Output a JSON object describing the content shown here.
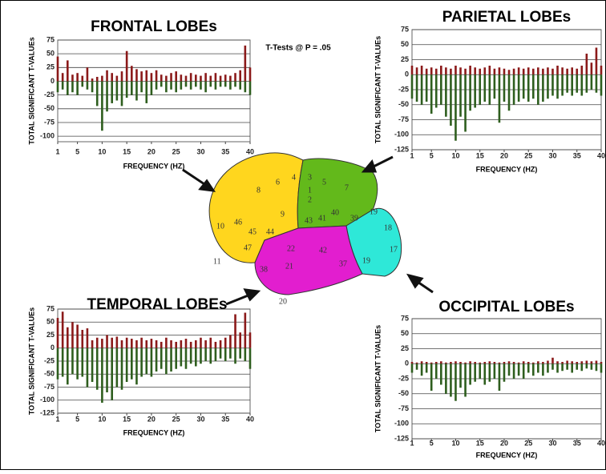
{
  "annotation": "T-Tests @ P = .05",
  "brain_areas": [
    "8",
    "6",
    "4",
    "3",
    "1",
    "2",
    "5",
    "7",
    "9",
    "46",
    "10",
    "45",
    "44",
    "43",
    "41",
    "40",
    "39",
    "19",
    "18",
    "17",
    "47",
    "11",
    "22",
    "42",
    "21",
    "38",
    "37",
    "19",
    "20"
  ],
  "chart_data": [
    {
      "type": "bar",
      "title": "FRONTAL LOBEs",
      "x_label": "FREQUENCY (HZ)",
      "y_label": "TOTAL SIGNIFICANT T-VALUEs",
      "x": [
        1,
        2,
        3,
        4,
        5,
        6,
        7,
        8,
        9,
        10,
        11,
        12,
        13,
        14,
        15,
        16,
        17,
        18,
        19,
        20,
        21,
        22,
        23,
        24,
        25,
        26,
        27,
        28,
        29,
        30,
        31,
        32,
        33,
        34,
        35,
        36,
        37,
        38,
        39,
        40
      ],
      "xlim": [
        1,
        40
      ],
      "xticks": [
        1,
        5,
        10,
        15,
        20,
        25,
        30,
        35,
        40
      ],
      "ylim": [
        -110,
        75
      ],
      "yticks": [
        75,
        50,
        25,
        0,
        -25,
        -50,
        -75,
        -100
      ],
      "grid": true,
      "series": [
        {
          "color": "#8b1a1a",
          "values": [
            45,
            15,
            38,
            12,
            15,
            10,
            25,
            5,
            8,
            10,
            20,
            15,
            10,
            18,
            55,
            28,
            22,
            18,
            20,
            15,
            20,
            12,
            10,
            15,
            18,
            12,
            10,
            15,
            12,
            10,
            15,
            10,
            15,
            10,
            12,
            10,
            15,
            20,
            65,
            25
          ]
        },
        {
          "color": "#2e5e1e",
          "values": [
            -20,
            -15,
            -25,
            -20,
            -25,
            -10,
            -15,
            -20,
            -45,
            -90,
            -55,
            -40,
            -35,
            -45,
            -30,
            -25,
            -35,
            -20,
            -40,
            -25,
            -15,
            -10,
            -20,
            -15,
            -20,
            -15,
            -10,
            -15,
            -10,
            -15,
            -20,
            -10,
            -15,
            -10,
            -10,
            -15,
            -10,
            -15,
            -20,
            -25
          ]
        }
      ]
    },
    {
      "type": "bar",
      "title": "PARIETAL LOBEs",
      "x_label": "FREQUENCY (HZ)",
      "y_label": "TOTAL SIGNIFICANT T-VALUEs",
      "x": [
        1,
        2,
        3,
        4,
        5,
        6,
        7,
        8,
        9,
        10,
        11,
        12,
        13,
        14,
        15,
        16,
        17,
        18,
        19,
        20,
        21,
        22,
        23,
        24,
        25,
        26,
        27,
        28,
        29,
        30,
        31,
        32,
        33,
        34,
        35,
        36,
        37,
        38,
        39,
        40
      ],
      "xlim": [
        1,
        40
      ],
      "xticks": [
        1,
        5,
        10,
        15,
        20,
        25,
        30,
        35,
        40
      ],
      "ylim": [
        -125,
        75
      ],
      "yticks": [
        75,
        50,
        25,
        0,
        -25,
        -50,
        -75,
        -100,
        -125
      ],
      "grid": true,
      "series": [
        {
          "color": "#8b1a1a",
          "values": [
            15,
            12,
            15,
            10,
            12,
            10,
            15,
            12,
            10,
            15,
            12,
            10,
            15,
            12,
            10,
            12,
            15,
            10,
            12,
            10,
            8,
            10,
            12,
            10,
            12,
            10,
            12,
            10,
            12,
            10,
            15,
            12,
            10,
            12,
            10,
            15,
            35,
            20,
            45,
            15
          ]
        },
        {
          "color": "#2e5e1e",
          "values": [
            -40,
            -45,
            -50,
            -45,
            -65,
            -55,
            -50,
            -70,
            -85,
            -110,
            -70,
            -95,
            -60,
            -55,
            -50,
            -45,
            -50,
            -40,
            -80,
            -45,
            -60,
            -50,
            -45,
            -40,
            -45,
            -40,
            -50,
            -45,
            -40,
            -35,
            -40,
            -35,
            -30,
            -35,
            -30,
            -35,
            -30,
            -25,
            -30,
            -35
          ]
        }
      ]
    },
    {
      "type": "bar",
      "title": "TEMPORAL LOBEs",
      "x_label": "FREQUENCY (HZ)",
      "y_label": "TOTAL SIGNIFICANT T-VALUEs",
      "x": [
        1,
        2,
        3,
        4,
        5,
        6,
        7,
        8,
        9,
        10,
        11,
        12,
        13,
        14,
        15,
        16,
        17,
        18,
        19,
        20,
        21,
        22,
        23,
        24,
        25,
        26,
        27,
        28,
        29,
        30,
        31,
        32,
        33,
        34,
        35,
        36,
        37,
        38,
        39,
        40
      ],
      "xlim": [
        1,
        40
      ],
      "xticks": [
        1,
        5,
        10,
        15,
        20,
        25,
        30,
        35,
        40
      ],
      "ylim": [
        -125,
        75
      ],
      "yticks": [
        75,
        50,
        25,
        0,
        -25,
        -50,
        -75,
        -100,
        -125
      ],
      "grid": true,
      "series": [
        {
          "color": "#8b1a1a",
          "values": [
            58,
            70,
            40,
            50,
            45,
            35,
            38,
            15,
            20,
            18,
            25,
            20,
            22,
            15,
            20,
            18,
            15,
            20,
            15,
            18,
            15,
            12,
            20,
            15,
            12,
            15,
            18,
            12,
            15,
            20,
            15,
            20,
            12,
            15,
            20,
            25,
            65,
            30,
            68,
            30
          ]
        },
        {
          "color": "#2e5e1e",
          "values": [
            -60,
            -55,
            -70,
            -50,
            -60,
            -55,
            -75,
            -65,
            -80,
            -105,
            -85,
            -100,
            -75,
            -80,
            -65,
            -60,
            -70,
            -55,
            -50,
            -55,
            -45,
            -40,
            -50,
            -45,
            -40,
            -35,
            -40,
            -30,
            -35,
            -30,
            -25,
            -30,
            -25,
            -20,
            -25,
            -20,
            -30,
            -20,
            -25,
            -40
          ]
        }
      ]
    },
    {
      "type": "bar",
      "title": "OCCIPITAL LOBEs",
      "x_label": "FREQUENCY (HZ)",
      "y_label": "TOTAL SIGNIFICANT T-VALUEs",
      "x": [
        1,
        2,
        3,
        4,
        5,
        6,
        7,
        8,
        9,
        10,
        11,
        12,
        13,
        14,
        15,
        16,
        17,
        18,
        19,
        20,
        21,
        22,
        23,
        24,
        25,
        26,
        27,
        28,
        29,
        30,
        31,
        32,
        33,
        34,
        35,
        36,
        37,
        38,
        39,
        40
      ],
      "xlim": [
        1,
        40
      ],
      "xticks": [
        1,
        5,
        10,
        15,
        20,
        25,
        30,
        35,
        40
      ],
      "ylim": [
        -125,
        75
      ],
      "yticks": [
        75,
        50,
        25,
        0,
        -25,
        -50,
        -75,
        -100,
        -125
      ],
      "grid": true,
      "series": [
        {
          "color": "#8b1a1a",
          "values": [
            3,
            2,
            4,
            3,
            2,
            3,
            4,
            2,
            3,
            4,
            3,
            2,
            4,
            3,
            2,
            3,
            4,
            3,
            2,
            3,
            4,
            3,
            2,
            4,
            3,
            2,
            4,
            3,
            5,
            10,
            4,
            3,
            5,
            4,
            3,
            4,
            5,
            4,
            5,
            3
          ]
        },
        {
          "color": "#2e5e1e",
          "values": [
            -15,
            -10,
            -20,
            -15,
            -45,
            -25,
            -35,
            -50,
            -55,
            -62,
            -40,
            -55,
            -35,
            -30,
            -25,
            -35,
            -30,
            -25,
            -45,
            -30,
            -20,
            -25,
            -20,
            -25,
            -15,
            -20,
            -15,
            -20,
            -15,
            -10,
            -15,
            -12,
            -10,
            -15,
            -10,
            -12,
            -8,
            -10,
            -12,
            -15
          ]
        }
      ]
    }
  ]
}
